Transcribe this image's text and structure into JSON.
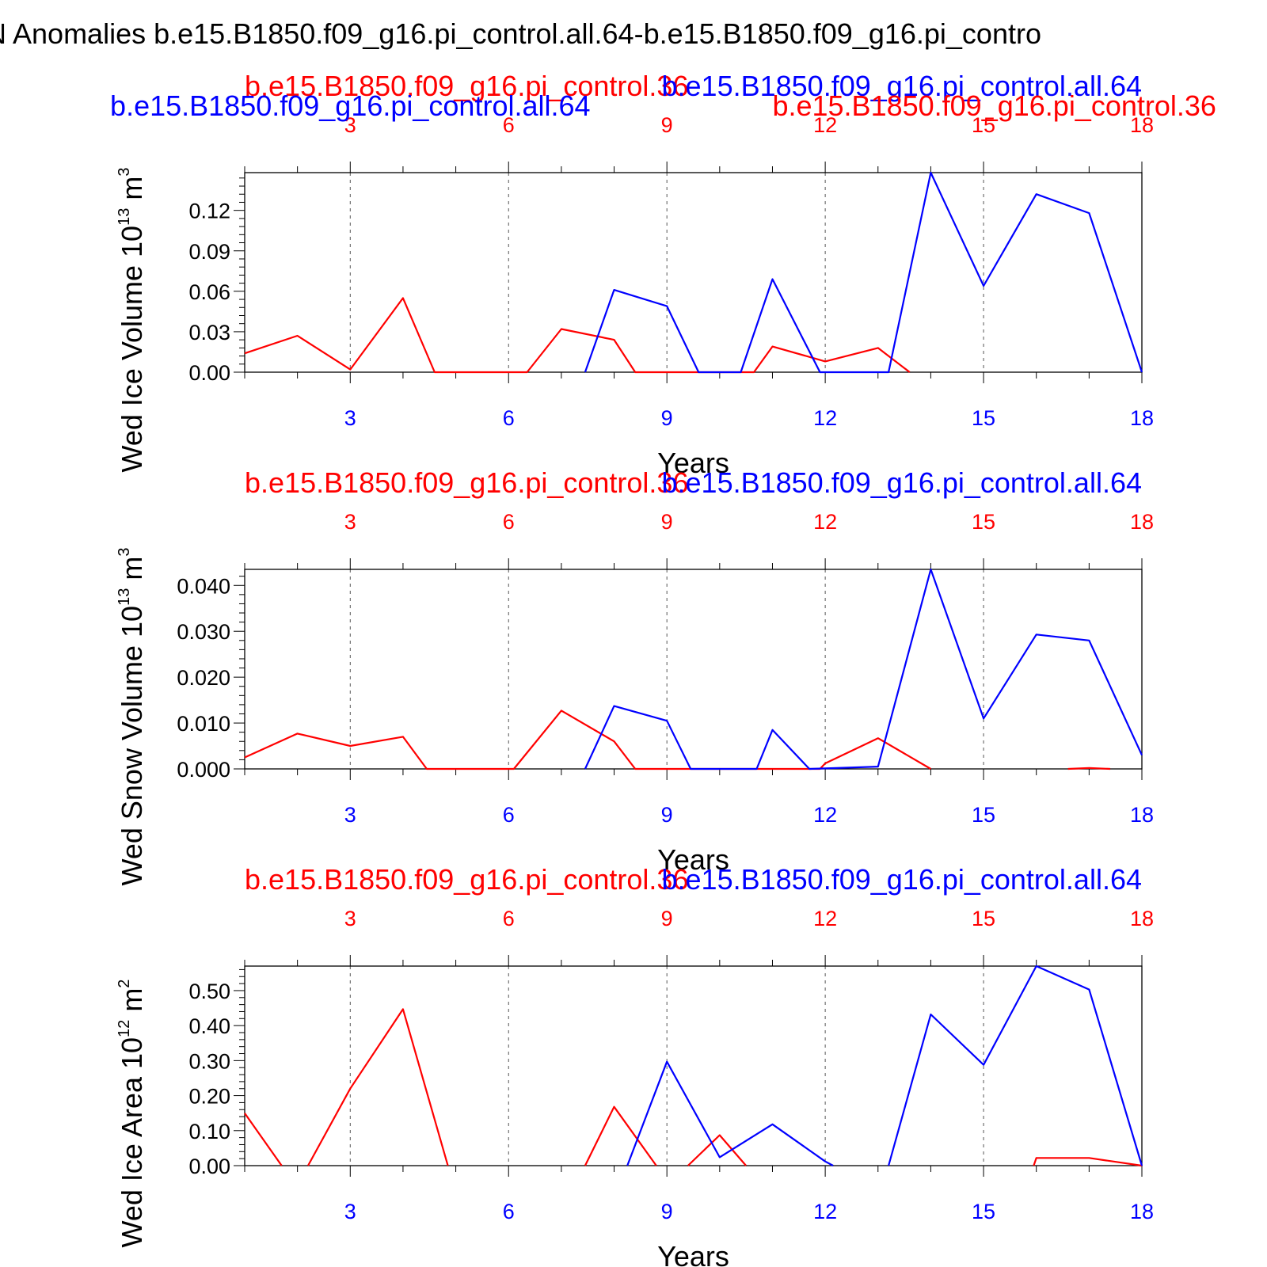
{
  "page": {
    "title": "N Anomalies b.e15.B1850.f09_g16.pi_control.all.64-b.e15.B1850.f09_g16.pi_contro"
  },
  "colors": {
    "red_series": "#ff0000",
    "blue_series": "#0000ff",
    "axis": "#000000"
  },
  "chart_data": [
    {
      "type": "line",
      "ylabel_main": "Wed Ice Volume 10",
      "ylabel_exp": "13",
      "ylabel_unit": " m",
      "ylabel_unit_exp": "3",
      "xlabel": "Years",
      "xlim": [
        1,
        18
      ],
      "ylim": [
        0,
        0.148
      ],
      "yticks": [
        "0.00",
        "0.03",
        "0.06",
        "0.09",
        "0.12"
      ],
      "ytick_values": [
        0,
        0.03,
        0.06,
        0.09,
        0.12
      ],
      "xticks": [
        "3",
        "6",
        "9",
        "12",
        "15",
        "18"
      ],
      "xtick_values": [
        3,
        6,
        9,
        12,
        15,
        18
      ],
      "top_labels": [
        {
          "text": "b.e15.B1850.f09_g16.pi_control.36",
          "color": "red_series",
          "anchor": "start",
          "x": 1,
          "row": 0
        },
        {
          "text": "b.e15.B1850.f09_g16.pi_control.all.64",
          "color": "blue_series",
          "anchor": "end",
          "x": 18,
          "row": 0
        },
        {
          "text": "b.e15.B1850.f09_g16.pi_control.all.64",
          "color": "blue_series",
          "anchor": "start",
          "x": -1.55,
          "row": 1
        },
        {
          "text": "b.e15.B1850.f09_g16.pi_control.36",
          "color": "red_series",
          "anchor": "start",
          "x": 11.0,
          "row": 1
        }
      ],
      "series": [
        {
          "color": "red_series",
          "x": [
            1,
            2,
            3,
            4,
            4.6,
            6.35,
            7,
            8,
            8.4,
            10.65,
            11,
            12,
            13,
            13.6
          ],
          "values": [
            0.014,
            0.027,
            0.002,
            0.055,
            0,
            0,
            0.032,
            0.024,
            0,
            0,
            0.019,
            0.008,
            0.018,
            0
          ]
        },
        {
          "color": "blue_series",
          "x": [
            7.45,
            8,
            9,
            9.6,
            10.4,
            11,
            11.9,
            13.2,
            14,
            15,
            16,
            17,
            18
          ],
          "values": [
            0,
            0.061,
            0.049,
            0,
            0,
            0.069,
            0,
            0,
            0.148,
            0.064,
            0.132,
            0.118,
            0
          ]
        }
      ]
    },
    {
      "type": "line",
      "ylabel_main": "Wed Snow Volume 10",
      "ylabel_exp": "13",
      "ylabel_unit": " m",
      "ylabel_unit_exp": "3",
      "xlabel": "Years",
      "xlim": [
        1,
        18
      ],
      "ylim": [
        0,
        0.0435
      ],
      "yticks": [
        "0.000",
        "0.010",
        "0.020",
        "0.030",
        "0.040"
      ],
      "ytick_values": [
        0,
        0.01,
        0.02,
        0.03,
        0.04
      ],
      "xticks": [
        "3",
        "6",
        "9",
        "12",
        "15",
        "18"
      ],
      "xtick_values": [
        3,
        6,
        9,
        12,
        15,
        18
      ],
      "top_labels": [
        {
          "text": "b.e15.B1850.f09_g16.pi_control.36",
          "color": "red_series",
          "anchor": "start",
          "x": 1,
          "row": 0
        },
        {
          "text": "b.e15.B1850.f09_g16.pi_control.all.64",
          "color": "blue_series",
          "anchor": "end",
          "x": 18,
          "row": 0
        }
      ],
      "series": [
        {
          "color": "red_series",
          "x": [
            1,
            2,
            3,
            4,
            4.45,
            6.1,
            7,
            8,
            8.4,
            11.9,
            12,
            13,
            14
          ],
          "values": [
            0.0025,
            0.0077,
            0.005,
            0.007,
            0,
            0,
            0.0127,
            0.006,
            0,
            0,
            0.0012,
            0.0067,
            0
          ]
        },
        {
          "color": "red_series",
          "x": [
            16.6,
            17,
            17.4
          ],
          "values": [
            0,
            0.0002,
            0
          ]
        },
        {
          "color": "blue_series",
          "x": [
            7.45,
            8,
            9,
            9.45,
            10.7,
            11,
            11.7,
            13,
            14,
            15,
            16,
            17,
            18
          ],
          "values": [
            0,
            0.0137,
            0.0105,
            0,
            0,
            0.0085,
            0,
            0.0005,
            0.0435,
            0.011,
            0.0293,
            0.028,
            0.003
          ]
        }
      ]
    },
    {
      "type": "line",
      "ylabel_main": "Wed Ice Area 10",
      "ylabel_exp": "12",
      "ylabel_unit": " m",
      "ylabel_unit_exp": "2",
      "xlabel": "Years",
      "xlim": [
        1,
        18
      ],
      "ylim": [
        0,
        0.57
      ],
      "yticks": [
        "0.00",
        "0.10",
        "0.20",
        "0.30",
        "0.40",
        "0.50"
      ],
      "ytick_values": [
        0,
        0.1,
        0.2,
        0.3,
        0.4,
        0.5
      ],
      "xticks": [
        "3",
        "6",
        "9",
        "12",
        "15",
        "18"
      ],
      "xtick_values": [
        3,
        6,
        9,
        12,
        15,
        18
      ],
      "top_labels": [
        {
          "text": "b.e15.B1850.f09_g16.pi_control.36",
          "color": "red_series",
          "anchor": "start",
          "x": 1,
          "row": 0
        },
        {
          "text": "b.e15.B1850.f09_g16.pi_control.all.64",
          "color": "blue_series",
          "anchor": "end",
          "x": 18,
          "row": 0
        }
      ],
      "series": [
        {
          "color": "red_series",
          "x": [
            1,
            1.7
          ],
          "values": [
            0.15,
            0
          ]
        },
        {
          "color": "red_series",
          "x": [
            2.2,
            3,
            4,
            4.85
          ],
          "values": [
            0,
            0.22,
            0.447,
            0
          ]
        },
        {
          "color": "red_series",
          "x": [
            7.45,
            8,
            8.8
          ],
          "values": [
            0,
            0.168,
            0
          ]
        },
        {
          "color": "red_series",
          "x": [
            9.4,
            10,
            10.5
          ],
          "values": [
            0,
            0.087,
            0
          ]
        },
        {
          "color": "red_series",
          "x": [
            15.95,
            16,
            17,
            18
          ],
          "values": [
            0,
            0.022,
            0.022,
            0
          ]
        },
        {
          "color": "blue_series",
          "x": [
            8.25,
            9,
            10,
            11,
            12,
            12.15
          ],
          "values": [
            0,
            0.297,
            0.024,
            0.118,
            0.012,
            0
          ]
        },
        {
          "color": "blue_series",
          "x": [
            13.2,
            14,
            15,
            16,
            17,
            18
          ],
          "values": [
            0,
            0.432,
            0.288,
            0.57,
            0.503,
            0
          ]
        }
      ]
    }
  ]
}
